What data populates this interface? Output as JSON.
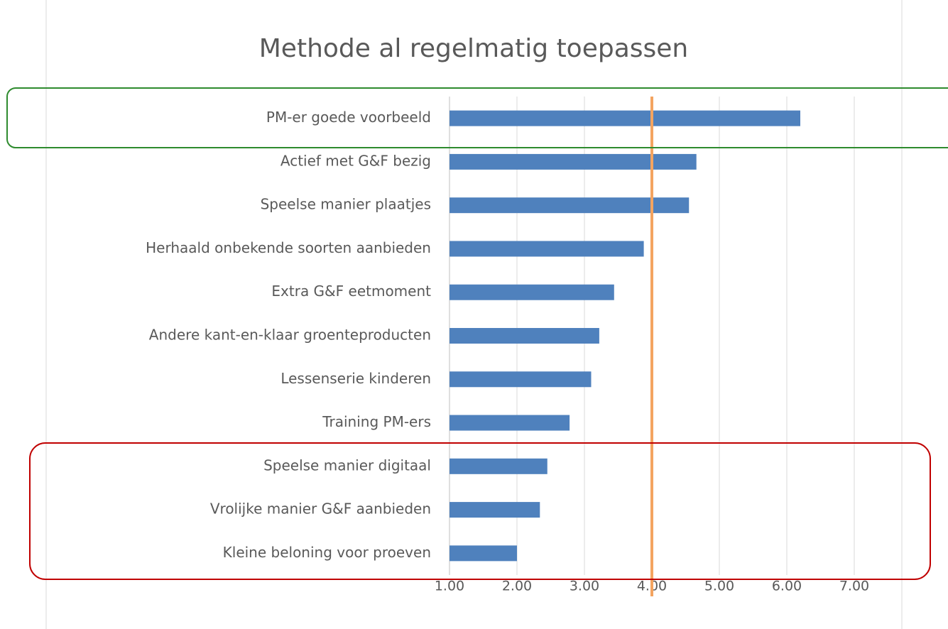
{
  "chart_data": {
    "type": "bar",
    "orientation": "horizontal",
    "title": "Methode al regelmatig toepassen",
    "categories": [
      "PM-er goede voorbeeld",
      "Actief met G&F bezig",
      "Speelse manier plaatjes",
      "Herhaald onbekende soorten aanbieden",
      "Extra G&F eetmoment",
      "Andere kant-en-klaar groenteproducten",
      "Lessenserie kinderen",
      "Training PM-ers",
      "Speelse manier digitaal",
      "Vrolijke manier G&F aanbieden",
      "Kleine beloning voor proeven"
    ],
    "values": [
      6.2,
      4.66,
      4.55,
      3.88,
      3.44,
      3.22,
      3.1,
      2.78,
      2.45,
      2.34,
      2.0
    ],
    "color": "#4f81bd",
    "xlim": [
      1,
      7
    ],
    "xticks": [
      {
        "value": 1,
        "label": "1.00"
      },
      {
        "value": 2,
        "label": "2.00"
      },
      {
        "value": 3,
        "label": "3.00"
      },
      {
        "value": 4,
        "label": "4.00"
      },
      {
        "value": 5,
        "label": "5.00"
      },
      {
        "value": 6,
        "label": "6.00"
      },
      {
        "value": 7,
        "label": "7.00"
      }
    ],
    "grid": true,
    "reference_line": {
      "value": 4,
      "color": "#f4a460"
    }
  }
}
